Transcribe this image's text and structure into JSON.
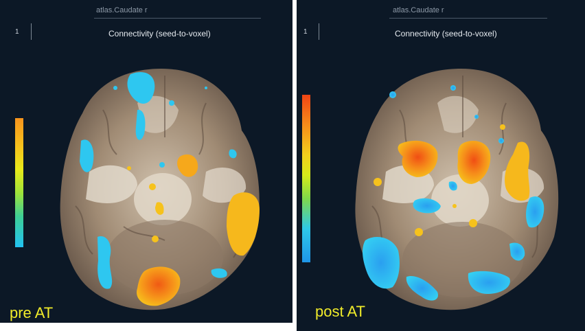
{
  "panels": [
    {
      "seed_label": "atlas.Caudate r",
      "frame_number": "1",
      "analysis_title": "Connectivity (seed-to-voxel)",
      "condition_label": "pre AT"
    },
    {
      "seed_label": "atlas.Caudate r",
      "frame_number": "1",
      "analysis_title": "Connectivity (seed-to-voxel)",
      "condition_label": "post AT"
    }
  ],
  "colors": {
    "background": "#0c1826",
    "negative": "#2ec7f0",
    "positive": "#f6b41c",
    "peak": "#f05a14",
    "label": "#f1ec2a"
  }
}
